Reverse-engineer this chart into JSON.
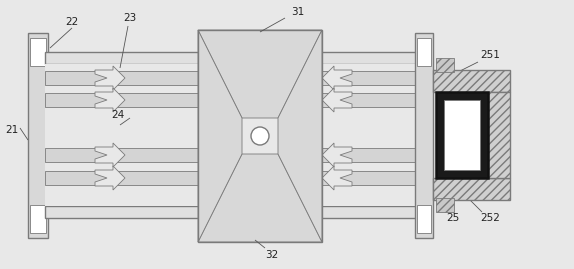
{
  "bg_color": "#e8e8e8",
  "line_color": "#7a7a7a",
  "dark_line": "#555555",
  "black": "#111111",
  "figsize": [
    5.74,
    2.69
  ],
  "dpi": 100,
  "fs": 7.5,
  "lw_main": 1.0,
  "lw_thin": 0.6,
  "lw_thick": 1.8
}
